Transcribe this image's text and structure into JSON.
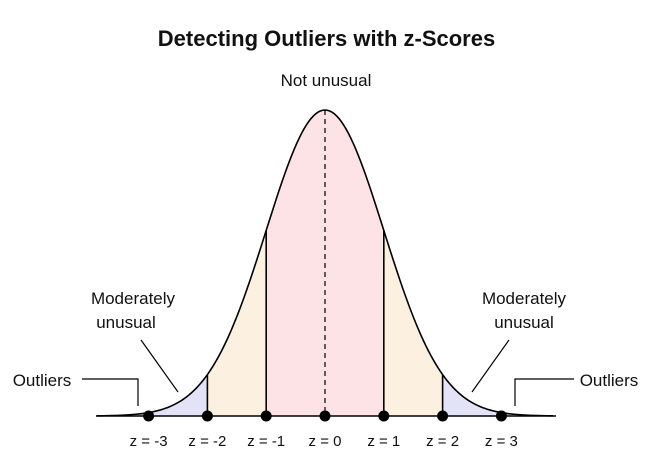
{
  "title": "Detecting Outliers with z-Scores",
  "labels": {
    "center": "Not unusual",
    "left_moderate": [
      "Moderately",
      "unusual"
    ],
    "right_moderate": [
      "Moderately",
      "unusual"
    ],
    "left_outliers": "Outliers",
    "right_outliers": "Outliers"
  },
  "ticks": [
    {
      "z": -3,
      "label": "z = -3"
    },
    {
      "z": -2,
      "label": "z = -2"
    },
    {
      "z": -1,
      "label": "z = -1"
    },
    {
      "z": 0,
      "label": "z = 0"
    },
    {
      "z": 1,
      "label": "z = 1"
    },
    {
      "z": 2,
      "label": "z = 2"
    },
    {
      "z": 3,
      "label": "z = 3"
    }
  ],
  "regions": [
    {
      "name": "not-unusual",
      "from": -1,
      "to": 1,
      "color": "#fde2e6"
    },
    {
      "name": "moderately-unusual",
      "from": 1,
      "to": 2,
      "color": "#fcf1e0"
    },
    {
      "name": "outliers",
      "from": 2,
      "to": 4,
      "color": "#e3e3f8"
    }
  ]
}
